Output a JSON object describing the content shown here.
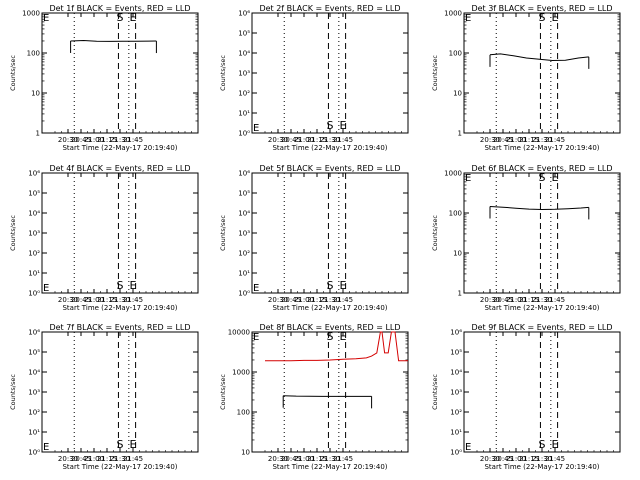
{
  "chart_data": [
    {
      "type": "line",
      "title": "Det 1f BLACK = Events, RED = LLD",
      "xlabel": "Start Time (22-May-17 20:19:40)",
      "ylabel": "Counts/sec",
      "yscale": "log",
      "ylim": [
        1,
        1000
      ],
      "y_ticks": [
        "1",
        "10",
        "100",
        "1000"
      ],
      "x_ticks": [
        "20:30",
        "20:45",
        "21:00",
        "21:15",
        "21:30",
        "21:45"
      ],
      "markers": {
        "S": "S",
        "E": "E"
      },
      "series": [
        {
          "name": "",
          "color": "#000000",
          "x": [
            20.55,
            20.8,
            21.05,
            21.3,
            21.55,
            21.8,
            22.05,
            22.2
          ],
          "values": [
            200,
            205,
            196,
            195,
            196,
            197,
            198,
            199
          ]
        }
      ]
    },
    {
      "type": "line",
      "title": "Det 2f BLACK = Events, RED = LLD",
      "xlabel": "Start Time (22-May-17 20:19:40)",
      "ylabel": "Counts/sec",
      "yscale": "log",
      "ylim": [
        1,
        1000000
      ],
      "y_ticks": [
        "10⁰",
        "10¹",
        "10²",
        "10³",
        "10⁴",
        "10⁵",
        "10⁶"
      ],
      "x_ticks": [
        "20:30",
        "20:45",
        "21:00",
        "21:15",
        "21:30",
        "21:45"
      ],
      "markers": {
        "S": "S",
        "E": "E"
      },
      "series": []
    },
    {
      "type": "line",
      "title": "Det 3f BLACK = Events, RED = LLD",
      "xlabel": "Start Time (22-May-17 20:19:40)",
      "ylabel": "Counts/sec",
      "yscale": "log",
      "ylim": [
        1,
        1000
      ],
      "y_ticks": [
        "1",
        "10",
        "100",
        "1000"
      ],
      "x_ticks": [
        "20:30",
        "20:45",
        "21:00",
        "21:15",
        "21:30",
        "21:45"
      ],
      "markers": {
        "S": "S",
        "E": "E"
      },
      "series": [
        {
          "name": "",
          "color": "#000000",
          "x": [
            20.5,
            20.7,
            20.95,
            21.2,
            21.45,
            21.7,
            21.95,
            22.2,
            22.4
          ],
          "values": [
            90,
            95,
            85,
            75,
            70,
            65,
            66,
            75,
            80
          ]
        }
      ]
    },
    {
      "type": "line",
      "title": "Det 4f BLACK = Events, RED = LLD",
      "xlabel": "Start Time (22-May-17 20:19:40)",
      "ylabel": "Counts/sec",
      "yscale": "log",
      "ylim": [
        1,
        1000000
      ],
      "y_ticks": [
        "10⁰",
        "10¹",
        "10²",
        "10³",
        "10⁴",
        "10⁵",
        "10⁶"
      ],
      "x_ticks": [
        "20:30",
        "20:45",
        "21:00",
        "21:15",
        "21:30",
        "21:45"
      ],
      "markers": {
        "S": "S",
        "E": "E"
      },
      "series": []
    },
    {
      "type": "line",
      "title": "Det 5f BLACK = Events, RED = LLD",
      "xlabel": "Start Time (22-May-17 20:19:40)",
      "ylabel": "Counts/sec",
      "yscale": "log",
      "ylim": [
        1,
        1000000
      ],
      "y_ticks": [
        "10⁰",
        "10¹",
        "10²",
        "10³",
        "10⁴",
        "10⁵",
        "10⁶"
      ],
      "x_ticks": [
        "20:30",
        "20:45",
        "21:00",
        "21:15",
        "21:30",
        "21:45"
      ],
      "markers": {
        "S": "S",
        "E": "E"
      },
      "series": []
    },
    {
      "type": "line",
      "title": "Det 6f BLACK = Events, RED = LLD",
      "xlabel": "Start Time (22-May-17 20:19:40)",
      "ylabel": "Counts/sec",
      "yscale": "log",
      "ylim": [
        1,
        1000
      ],
      "y_ticks": [
        "1",
        "10",
        "100",
        "1000"
      ],
      "x_ticks": [
        "20:30",
        "20:45",
        "21:00",
        "21:15",
        "21:30",
        "21:45"
      ],
      "markers": {
        "S": "S",
        "E": "E"
      },
      "series": [
        {
          "name": "",
          "color": "#000000",
          "x": [
            20.5,
            20.75,
            21.0,
            21.25,
            21.5,
            21.75,
            22.0,
            22.25,
            22.4
          ],
          "values": [
            145,
            140,
            132,
            125,
            122,
            124,
            128,
            133,
            138
          ]
        }
      ]
    },
    {
      "type": "line",
      "title": "Det 7f BLACK = Events, RED = LLD",
      "xlabel": "Start Time (22-May-17 20:19:40)",
      "ylabel": "Counts/sec",
      "yscale": "log",
      "ylim": [
        1,
        1000000
      ],
      "y_ticks": [
        "10⁰",
        "10¹",
        "10²",
        "10³",
        "10⁴",
        "10⁵",
        "10⁶"
      ],
      "x_ticks": [
        "20:30",
        "20:45",
        "21:00",
        "21:15",
        "21:30",
        "21:45"
      ],
      "markers": {
        "S": "S",
        "E": "E"
      },
      "series": []
    },
    {
      "type": "line",
      "title": "Det 8f BLACK = Events, RED = LLD",
      "xlabel": "Start Time (22-May-17 20:19:40)",
      "ylabel": "Counts/sec",
      "yscale": "log",
      "ylim": [
        10,
        10000
      ],
      "y_ticks": [
        "10",
        "100",
        "1000",
        "10000"
      ],
      "x_ticks": [
        "20:30",
        "20:45",
        "21:00",
        "21:15",
        "21:30",
        "21:45"
      ],
      "markers": {
        "S": "S",
        "E": "E"
      },
      "series": [
        {
          "name": "",
          "color": "#000000",
          "x": [
            20.6,
            20.85,
            21.1,
            21.35,
            21.6,
            21.85,
            22.1,
            22.3
          ],
          "values": [
            255,
            250,
            248,
            246,
            246,
            245,
            246,
            246
          ]
        },
        {
          "name": "",
          "color": "#d40000",
          "x": [
            20.25,
            20.5,
            20.75,
            21.0,
            21.25,
            21.5,
            21.75,
            22.0,
            22.2,
            22.3,
            22.4,
            22.47,
            22.5,
            22.55,
            22.62,
            22.68,
            22.75,
            22.82,
            22.9,
            23.0
          ],
          "values": [
            1900,
            1900,
            1920,
            1950,
            1950,
            2000,
            2080,
            2150,
            2250,
            2500,
            3000,
            10000,
            10000,
            3000,
            3000,
            10000,
            10000,
            1900,
            1900,
            1900
          ]
        }
      ]
    },
    {
      "type": "line",
      "title": "Det 9f BLACK = Events, RED = LLD",
      "xlabel": "Start Time (22-May-17 20:19:40)",
      "ylabel": "Counts/sec",
      "yscale": "log",
      "ylim": [
        1,
        1000000
      ],
      "y_ticks": [
        "10⁰",
        "10¹",
        "10²",
        "10³",
        "10⁴",
        "10⁵",
        "10⁶"
      ],
      "x_ticks": [
        "20:30",
        "20:45",
        "21:00",
        "21:15",
        "21:30",
        "21:45"
      ],
      "markers": {
        "S": "S",
        "E": "E"
      },
      "series": []
    }
  ]
}
